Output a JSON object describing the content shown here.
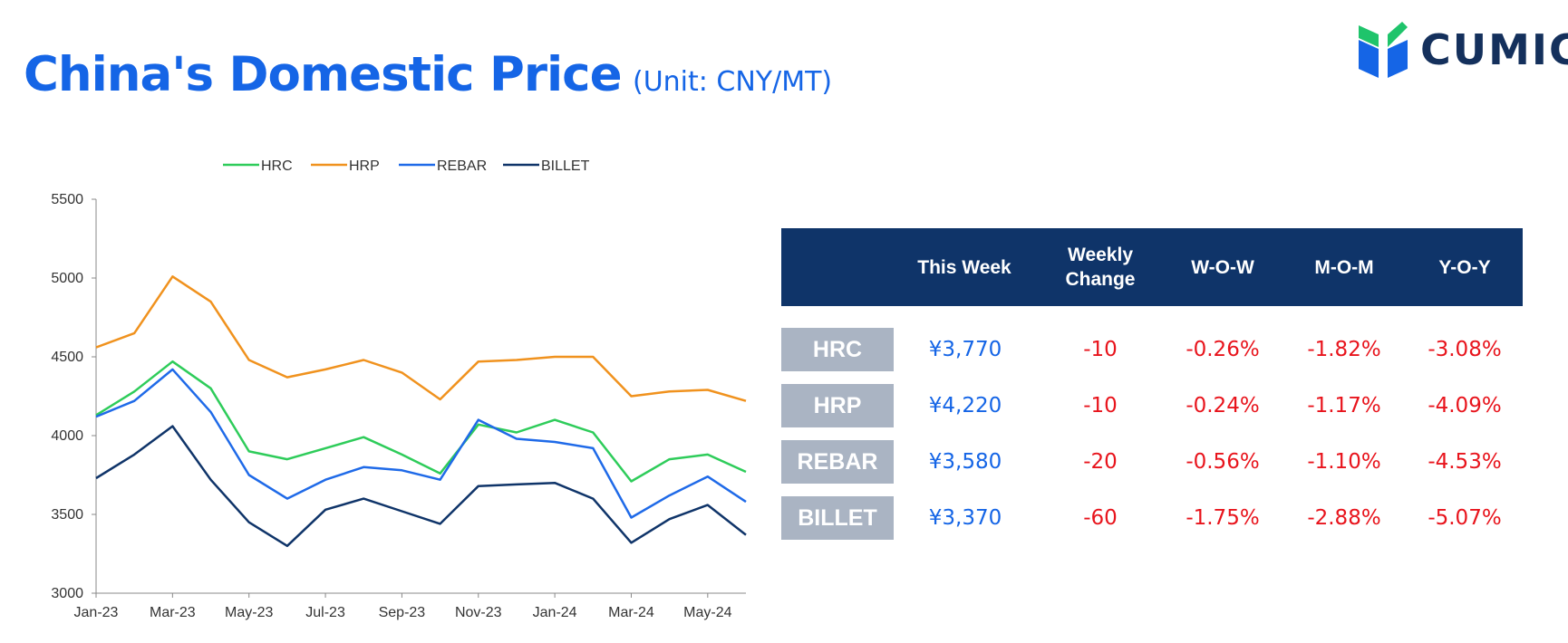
{
  "header": {
    "title": "China's Domestic Price",
    "unit": "(Unit: CNY/MT)"
  },
  "logo": {
    "text": "CUMIC",
    "colors": {
      "green": "#1fc46b",
      "blue": "#1565e6",
      "dark": "#14305c"
    }
  },
  "chart_data": {
    "type": "line",
    "title": "",
    "xlabel": "",
    "ylabel": "",
    "ylim": [
      3000,
      5500
    ],
    "yticks": [
      "3000",
      "3500",
      "4000",
      "4500",
      "5000",
      "5500"
    ],
    "xticks": [
      "Jan-23",
      "Mar-23",
      "May-23",
      "Jul-23",
      "Sep-23",
      "Nov-23",
      "Jan-24",
      "Mar-24",
      "May-24"
    ],
    "legend_position": "top",
    "x_note": "monthly samples, Jan-23 to Jun-24",
    "x": [
      "Jan-23",
      "Feb-23",
      "Mar-23",
      "Apr-23",
      "May-23",
      "Jun-23",
      "Jul-23",
      "Aug-23",
      "Sep-23",
      "Oct-23",
      "Nov-23",
      "Dec-23",
      "Jan-24",
      "Feb-24",
      "Mar-24",
      "Apr-24",
      "May-24",
      "Jun-24"
    ],
    "series": [
      {
        "name": "HRC",
        "color": "#2ecc5a",
        "values": [
          4130,
          4280,
          4470,
          4300,
          3900,
          3850,
          3920,
          3990,
          3880,
          3760,
          4070,
          4020,
          4100,
          4020,
          3710,
          3850,
          3880,
          3770
        ]
      },
      {
        "name": "HRP",
        "color": "#f0921e",
        "values": [
          4560,
          4650,
          5010,
          4850,
          4480,
          4370,
          4420,
          4480,
          4400,
          4230,
          4470,
          4480,
          4500,
          4500,
          4250,
          4280,
          4290,
          4220
        ]
      },
      {
        "name": "REBAR",
        "color": "#1f6ae8",
        "values": [
          4120,
          4220,
          4420,
          4150,
          3750,
          3600,
          3720,
          3800,
          3780,
          3720,
          4100,
          3980,
          3960,
          3920,
          3480,
          3620,
          3740,
          3580
        ]
      },
      {
        "name": "BILLET",
        "color": "#0f3469",
        "values": [
          3730,
          3880,
          4060,
          3720,
          3450,
          3300,
          3530,
          3600,
          3520,
          3440,
          3680,
          3690,
          3700,
          3600,
          3320,
          3470,
          3560,
          3370
        ]
      }
    ]
  },
  "table": {
    "headers": [
      "This Week",
      "Weekly Change",
      "W-O-W",
      "M-O-M",
      "Y-O-Y"
    ],
    "headers_lines": [
      [
        "This Week"
      ],
      [
        "Weekly",
        "Change"
      ],
      [
        "W-O-W"
      ],
      [
        "M-O-M"
      ],
      [
        "Y-O-Y"
      ]
    ],
    "rows": [
      {
        "label": "HRC",
        "this_week": "¥3,770",
        "weekly_change": "-10",
        "wow": "-0.26%",
        "mom": "-1.82%",
        "yoy": "-3.08%"
      },
      {
        "label": "HRP",
        "this_week": "¥4,220",
        "weekly_change": "-10",
        "wow": "-0.24%",
        "mom": "-1.17%",
        "yoy": "-4.09%"
      },
      {
        "label": "REBAR",
        "this_week": "¥3,580",
        "weekly_change": "-20",
        "wow": "-0.56%",
        "mom": "-1.10%",
        "yoy": "-4.53%"
      },
      {
        "label": "BILLET",
        "this_week": "¥3,370",
        "weekly_change": "-60",
        "wow": "-1.75%",
        "mom": "-2.88%",
        "yoy": "-5.07%"
      }
    ]
  }
}
